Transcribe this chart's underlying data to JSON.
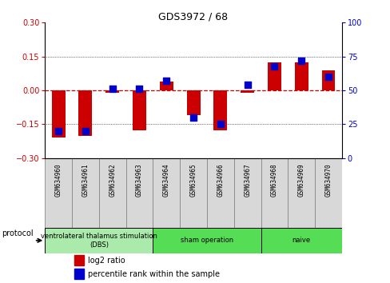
{
  "title": "GDS3972 / 68",
  "samples": [
    "GSM634960",
    "GSM634961",
    "GSM634962",
    "GSM634963",
    "GSM634964",
    "GSM634965",
    "GSM634966",
    "GSM634967",
    "GSM634968",
    "GSM634969",
    "GSM634970"
  ],
  "log2_ratio": [
    -0.21,
    -0.2,
    -0.01,
    -0.175,
    0.04,
    -0.11,
    -0.175,
    -0.01,
    0.125,
    0.125,
    0.09
  ],
  "percentile_rank": [
    20,
    20,
    51,
    51,
    57,
    30,
    25,
    54,
    68,
    72,
    60
  ],
  "percentile_ref": 50,
  "ylim_left": [
    -0.3,
    0.3
  ],
  "ylim_right": [
    0,
    100
  ],
  "yticks_left": [
    -0.3,
    -0.15,
    0,
    0.15,
    0.3
  ],
  "yticks_right": [
    0,
    25,
    50,
    75,
    100
  ],
  "groups": [
    {
      "label": "ventrolateral thalamus stimulation\n(DBS)",
      "start": 0,
      "end": 3,
      "color": "#aaeaaa"
    },
    {
      "label": "sham operation",
      "start": 4,
      "end": 7,
      "color": "#55dd55"
    },
    {
      "label": "naive",
      "start": 8,
      "end": 10,
      "color": "#55dd55"
    }
  ],
  "bar_color": "#cc0000",
  "dot_color": "#0000cc",
  "ref_line_color": "#cc0000",
  "bg_color": "#ffffff",
  "left_label_color": "#cc0000",
  "right_label_color": "#0000cc",
  "protocol_label": "protocol",
  "legend_log2": "log2 ratio",
  "legend_pct": "percentile rank within the sample",
  "sample_box_color": "#d8d8d8",
  "sample_box_edge": "#888888"
}
